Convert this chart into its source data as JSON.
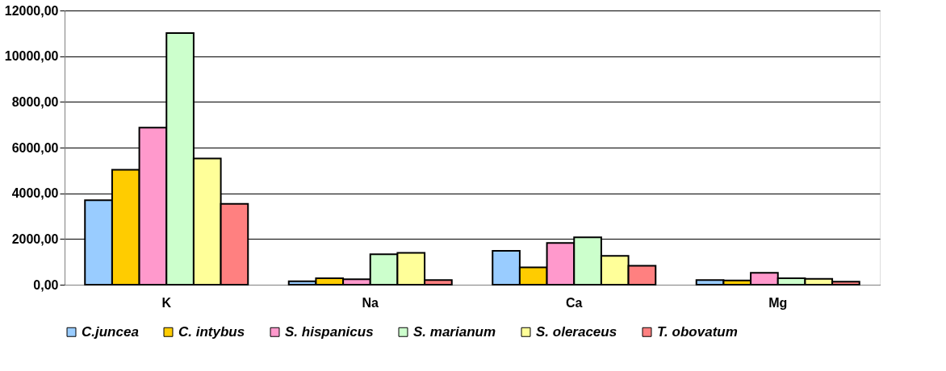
{
  "chart_data": {
    "type": "bar",
    "categories": [
      "K",
      "Na",
      "Ca",
      "Mg"
    ],
    "series": [
      {
        "name": "C.juncea",
        "color": "#99ccff",
        "values": [
          3700,
          150,
          1480,
          200
        ]
      },
      {
        "name": "C. intybus",
        "color": "#ffcc00",
        "values": [
          5030,
          280,
          760,
          185
        ]
      },
      {
        "name": "S. hispanicus",
        "color": "#ff99cc",
        "values": [
          6870,
          240,
          1830,
          520
        ]
      },
      {
        "name": "S. marianum",
        "color": "#ccffcc",
        "values": [
          11010,
          1330,
          2070,
          280
        ]
      },
      {
        "name": "S. oleraceus",
        "color": "#ffff99",
        "values": [
          5520,
          1390,
          1260,
          260
        ]
      },
      {
        "name": "T. obovatum",
        "color": "#ff8080",
        "values": [
          3540,
          200,
          830,
          130
        ]
      }
    ],
    "ylim": [
      0,
      12000
    ],
    "yticks": [
      {
        "value": 0,
        "label": "0,00"
      },
      {
        "value": 2000,
        "label": "2000,00"
      },
      {
        "value": 4000,
        "label": "4000,00"
      },
      {
        "value": 6000,
        "label": "6000,00"
      },
      {
        "value": 8000,
        "label": "8000,00"
      },
      {
        "value": 10000,
        "label": "10000,00"
      },
      {
        "value": 12000,
        "label": "12000,00"
      }
    ],
    "grid": "y",
    "legend": "bottom"
  }
}
